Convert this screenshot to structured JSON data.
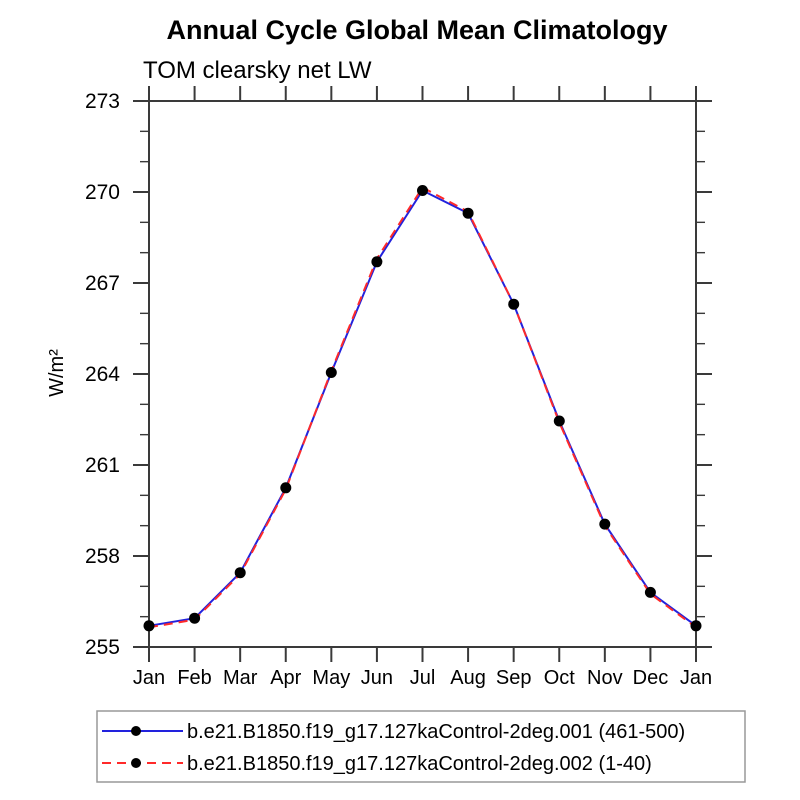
{
  "chart_data": {
    "type": "line",
    "title": "Annual Cycle Global Mean Climatology",
    "subtitle": "TOM clearsky net LW",
    "xlabel": "",
    "ylabel": "W/m²",
    "categories": [
      "Jan",
      "Feb",
      "Mar",
      "Apr",
      "May",
      "Jun",
      "Jul",
      "Aug",
      "Sep",
      "Oct",
      "Nov",
      "Dec",
      "Jan"
    ],
    "ylim": [
      255,
      273
    ],
    "yticks": [
      255,
      258,
      261,
      264,
      267,
      270,
      273
    ],
    "yminor_interval": 1,
    "grid": false,
    "legend_position": "bottom",
    "marker": {
      "shape": "circle",
      "color": "#000000"
    },
    "series": [
      {
        "name": "b.e21.B1850.f19_g17.127kaControl-2deg.001 (461-500)",
        "color": "#2222dd",
        "style": "solid",
        "values": [
          255.7,
          255.95,
          257.45,
          260.25,
          264.05,
          267.7,
          270.05,
          269.3,
          266.3,
          262.45,
          259.05,
          256.8,
          255.7
        ]
      },
      {
        "name": "b.e21.B1850.f19_g17.127kaControl-2deg.002 (1-40)",
        "color": "#ff2a2a",
        "style": "dashed",
        "values": [
          255.65,
          255.9,
          257.4,
          260.2,
          264.1,
          267.8,
          270.15,
          269.35,
          266.3,
          262.4,
          259.0,
          256.75,
          255.65
        ]
      }
    ],
    "frame_color": "#3a3a3a",
    "legend_border_color": "#999999"
  }
}
